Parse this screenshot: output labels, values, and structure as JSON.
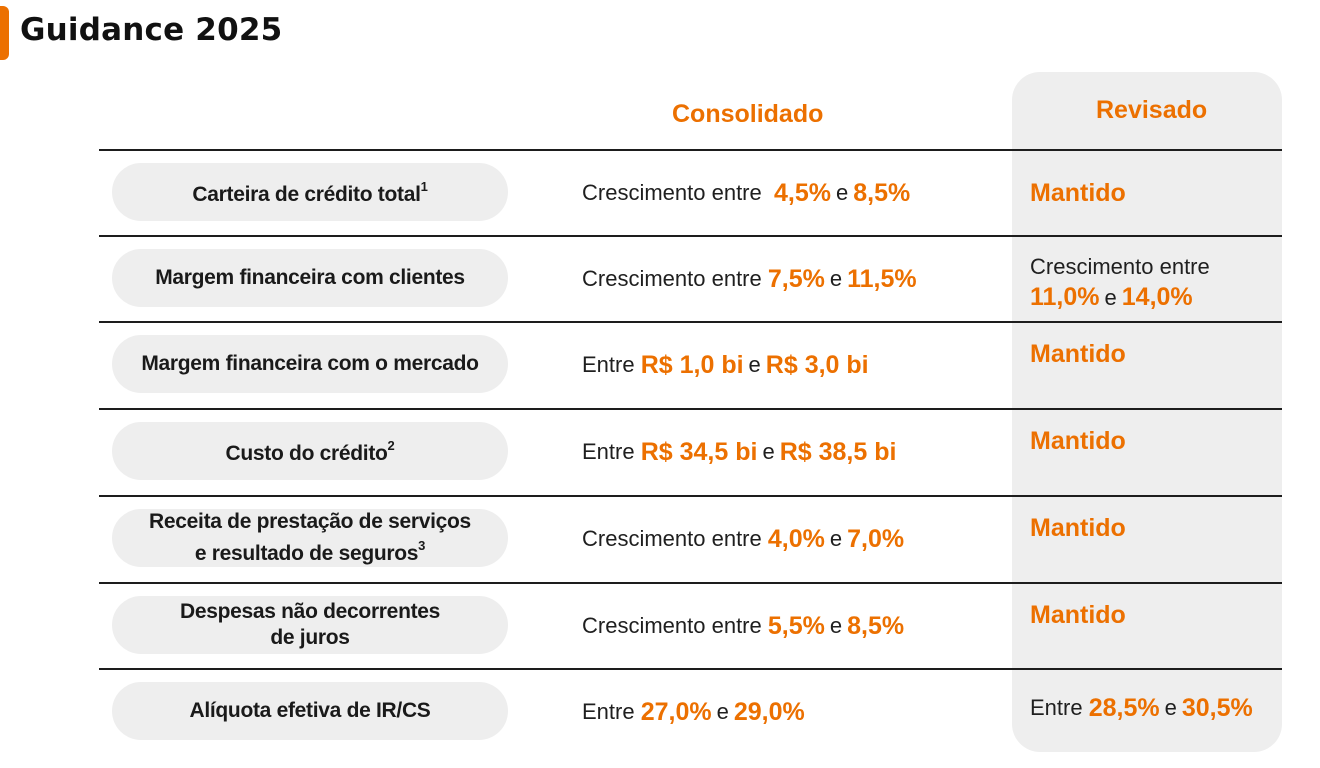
{
  "page": {
    "title": "Guidance 2025"
  },
  "columns": {
    "consolidado": "Consolidado",
    "revisado": "Revisado"
  },
  "connector": "e",
  "rows": [
    {
      "label_line1": "Carteira de crédito total",
      "label_line2": "",
      "footnote": "1",
      "consolidado": {
        "prefix": "Crescimento entre",
        "low": "4,5%",
        "high": "8,5%"
      },
      "revisado": {
        "status": "Mantido"
      }
    },
    {
      "label_line1": "Margem financeira com clientes",
      "label_line2": "",
      "footnote": "",
      "consolidado": {
        "prefix": "Crescimento entre",
        "low": "7,5%",
        "high": "11,5%"
      },
      "revisado": {
        "prefix": "Crescimento entre",
        "low": "11,0%",
        "high": "14,0%"
      }
    },
    {
      "label_line1": "Margem financeira com o mercado",
      "label_line2": "",
      "footnote": "",
      "consolidado": {
        "prefix": "Entre",
        "low": "R$ 1,0 bi",
        "high": "R$ 3,0 bi"
      },
      "revisado": {
        "status": "Mantido"
      }
    },
    {
      "label_line1": "Custo do crédito",
      "label_line2": "",
      "footnote": "2",
      "consolidado": {
        "prefix": "Entre",
        "low": "R$ 34,5 bi",
        "high": "R$ 38,5 bi"
      },
      "revisado": {
        "status": "Mantido"
      }
    },
    {
      "label_line1": "Receita de prestação de serviços",
      "label_line2": "e resultado de seguros",
      "footnote": "3",
      "consolidado": {
        "prefix": "Crescimento entre",
        "low": "4,0%",
        "high": "7,0%"
      },
      "revisado": {
        "status": "Mantido"
      }
    },
    {
      "label_line1": "Despesas não decorrentes",
      "label_line2": "de juros",
      "footnote": "",
      "consolidado": {
        "prefix": "Crescimento entre",
        "low": "5,5%",
        "high": "8,5%"
      },
      "revisado": {
        "status": "Mantido"
      }
    },
    {
      "label_line1": "Alíquota efetiva de IR/CS",
      "label_line2": "",
      "footnote": "",
      "consolidado": {
        "prefix": "Entre",
        "low": "27,0%",
        "high": "29,0%"
      },
      "revisado": {
        "prefix": "Entre",
        "low": "28,5%",
        "high": "30,5%"
      }
    }
  ],
  "colors": {
    "accent": "#ec7000",
    "pill": "#eeeeee",
    "rule": "#1d1d1d",
    "text": "#1a1a1a"
  }
}
